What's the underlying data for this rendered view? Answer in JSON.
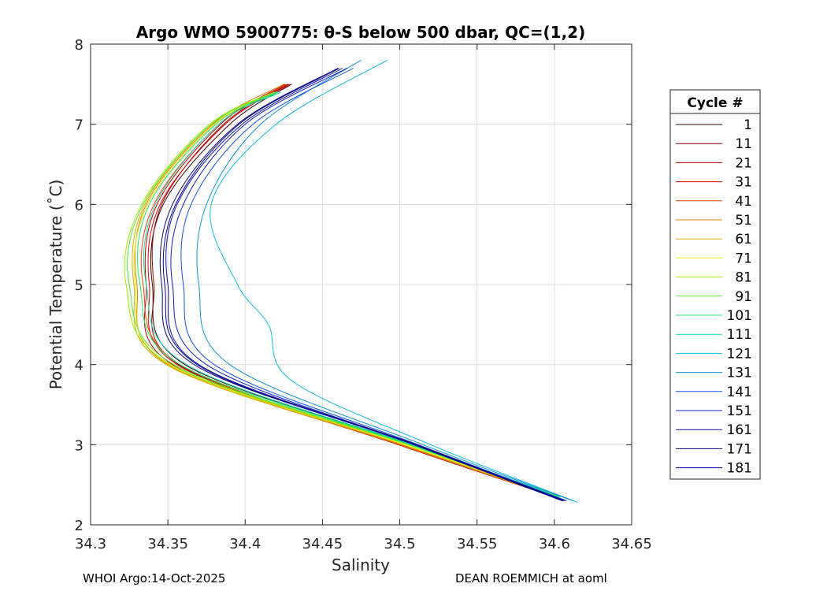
{
  "chart_data": {
    "type": "line",
    "title": "Argo WMO 5900775: θ-S below 500 dbar,  QC=(1,2)",
    "xlabel": "Salinity",
    "ylabel": "Potential Temperature (˚C)",
    "xlim": [
      34.3,
      34.65
    ],
    "ylim": [
      2,
      8
    ],
    "grid": true,
    "xticks": [
      34.3,
      34.35,
      34.4,
      34.45,
      34.5,
      34.55,
      34.6,
      34.65
    ],
    "xtick_labels": [
      "34.3",
      "34.35",
      "34.4",
      "34.45",
      "34.5",
      "34.55",
      "34.6",
      "34.65"
    ],
    "yticks": [
      2,
      3,
      4,
      5,
      6,
      7,
      8
    ],
    "ytick_labels": [
      "2",
      "3",
      "4",
      "5",
      "6",
      "7",
      "8"
    ],
    "legend": {
      "title": "Cycle #",
      "placement": "outside-right",
      "entries": [
        "1",
        "11",
        "21",
        "31",
        "41",
        "51",
        "61",
        "71",
        "81",
        "91",
        "101",
        "111",
        "121",
        "131",
        "141",
        "151",
        "161",
        "171",
        "181"
      ]
    },
    "series": [
      {
        "name": "1",
        "color": "#3a0000",
        "theta": [
          2.35,
          3.0,
          4.0,
          5.0,
          6.0,
          7.0,
          7.5
        ],
        "salinity": [
          34.603,
          34.508,
          34.361,
          34.34,
          34.347,
          34.39,
          34.43
        ]
      },
      {
        "name": "11",
        "color": "#8a0000",
        "theta": [
          2.35,
          3.0,
          4.0,
          5.0,
          6.0,
          7.0,
          7.5
        ],
        "salinity": [
          34.601,
          34.502,
          34.357,
          34.341,
          34.346,
          34.386,
          34.428
        ]
      },
      {
        "name": "21",
        "color": "#c00000",
        "theta": [
          2.35,
          3.0,
          4.0,
          5.0,
          6.0,
          7.0,
          7.5
        ],
        "salinity": [
          34.6,
          34.499,
          34.353,
          34.336,
          34.343,
          34.384,
          34.426
        ]
      },
      {
        "name": "31",
        "color": "#e00000",
        "theta": [
          2.35,
          3.0,
          4.0,
          5.0,
          6.0,
          7.0,
          7.5
        ],
        "salinity": [
          34.602,
          34.5,
          34.356,
          34.338,
          34.345,
          34.387,
          34.429
        ]
      },
      {
        "name": "41",
        "color": "#f04000",
        "theta": [
          2.35,
          3.0,
          4.0,
          5.0,
          6.0,
          7.0,
          7.5
        ],
        "salinity": [
          34.601,
          34.501,
          34.358,
          34.334,
          34.341,
          34.383,
          34.427
        ]
      },
      {
        "name": "51",
        "color": "#e08000",
        "theta": [
          2.35,
          3.0,
          4.0,
          5.0,
          6.0,
          7.0,
          7.5
        ],
        "salinity": [
          34.6,
          34.5,
          34.35,
          34.33,
          34.336,
          34.379,
          34.425
        ]
      },
      {
        "name": "61",
        "color": "#d0b000",
        "theta": [
          2.35,
          3.0,
          4.0,
          5.0,
          6.0,
          7.0,
          7.4
        ],
        "salinity": [
          34.601,
          34.502,
          34.349,
          34.328,
          34.335,
          34.378,
          34.42
        ]
      },
      {
        "name": "71",
        "color": "#e8e800",
        "theta": [
          2.35,
          3.0,
          4.0,
          5.0,
          6.0,
          7.0,
          7.4
        ],
        "salinity": [
          34.602,
          34.503,
          34.351,
          34.329,
          34.337,
          34.38,
          34.421
        ]
      },
      {
        "name": "81",
        "color": "#a0f000",
        "theta": [
          2.35,
          3.0,
          4.0,
          5.0,
          6.0,
          7.0,
          7.4
        ],
        "salinity": [
          34.603,
          34.505,
          34.352,
          34.323,
          34.333,
          34.377,
          34.419
        ]
      },
      {
        "name": "91",
        "color": "#50e830",
        "theta": [
          2.35,
          3.0,
          4.0,
          5.0,
          6.0,
          7.0,
          7.4
        ],
        "salinity": [
          34.603,
          34.506,
          34.354,
          34.325,
          34.334,
          34.378,
          34.42
        ]
      },
      {
        "name": "101",
        "color": "#20e870",
        "theta": [
          2.35,
          3.0,
          4.0,
          5.0,
          6.0,
          7.0,
          7.4
        ],
        "salinity": [
          34.604,
          34.507,
          34.358,
          34.332,
          34.338,
          34.381,
          34.421
        ]
      },
      {
        "name": "111",
        "color": "#10d8b0",
        "theta": [
          2.35,
          3.0,
          4.0,
          5.0,
          6.0,
          7.0,
          7.4
        ],
        "salinity": [
          34.604,
          34.508,
          34.362,
          34.336,
          34.342,
          34.383,
          34.423
        ]
      },
      {
        "name": "121",
        "color": "#10b8e0",
        "theta": [
          2.28,
          3.0,
          3.8,
          4.5,
          5.0,
          6.0,
          7.0,
          7.8
        ],
        "salinity": [
          34.615,
          34.52,
          34.43,
          34.415,
          34.395,
          34.378,
          34.42,
          34.492
        ]
      },
      {
        "name": "131",
        "color": "#1090d0",
        "theta": [
          2.3,
          3.0,
          4.0,
          5.0,
          6.0,
          7.0,
          7.8
        ],
        "salinity": [
          34.612,
          34.515,
          34.39,
          34.37,
          34.375,
          34.41,
          34.475
        ]
      },
      {
        "name": "141",
        "color": "#1050e0",
        "theta": [
          2.3,
          3.0,
          4.0,
          5.0,
          6.0,
          7.0,
          7.7
        ],
        "salinity": [
          34.608,
          34.512,
          34.38,
          34.36,
          34.365,
          34.405,
          34.47
        ]
      },
      {
        "name": "151",
        "color": "#1020c0",
        "theta": [
          2.3,
          3.0,
          4.0,
          5.0,
          6.0,
          7.0,
          7.7
        ],
        "salinity": [
          34.606,
          34.51,
          34.375,
          34.353,
          34.36,
          34.4,
          34.466
        ]
      },
      {
        "name": "161",
        "color": "#101090",
        "theta": [
          2.3,
          3.0,
          4.0,
          5.0,
          6.0,
          7.0,
          7.7
        ],
        "salinity": [
          34.607,
          34.511,
          34.37,
          34.35,
          34.356,
          34.398,
          34.463
        ]
      },
      {
        "name": "171",
        "color": "#0a0a70",
        "theta": [
          2.3,
          3.0,
          4.0,
          5.0,
          6.0,
          7.0,
          7.7
        ],
        "salinity": [
          34.606,
          34.51,
          34.367,
          34.346,
          34.353,
          34.395,
          34.46
        ]
      },
      {
        "name": "181",
        "color": "#0000a0",
        "theta": [
          2.3,
          3.0,
          4.0,
          5.0,
          6.0,
          7.0,
          7.7
        ],
        "salinity": [
          34.605,
          34.509,
          34.369,
          34.348,
          34.355,
          34.396,
          34.461
        ]
      }
    ]
  },
  "footer": {
    "left": "WHOI Argo:14-Oct-2025",
    "right": "DEAN ROEMMICH at aoml"
  }
}
